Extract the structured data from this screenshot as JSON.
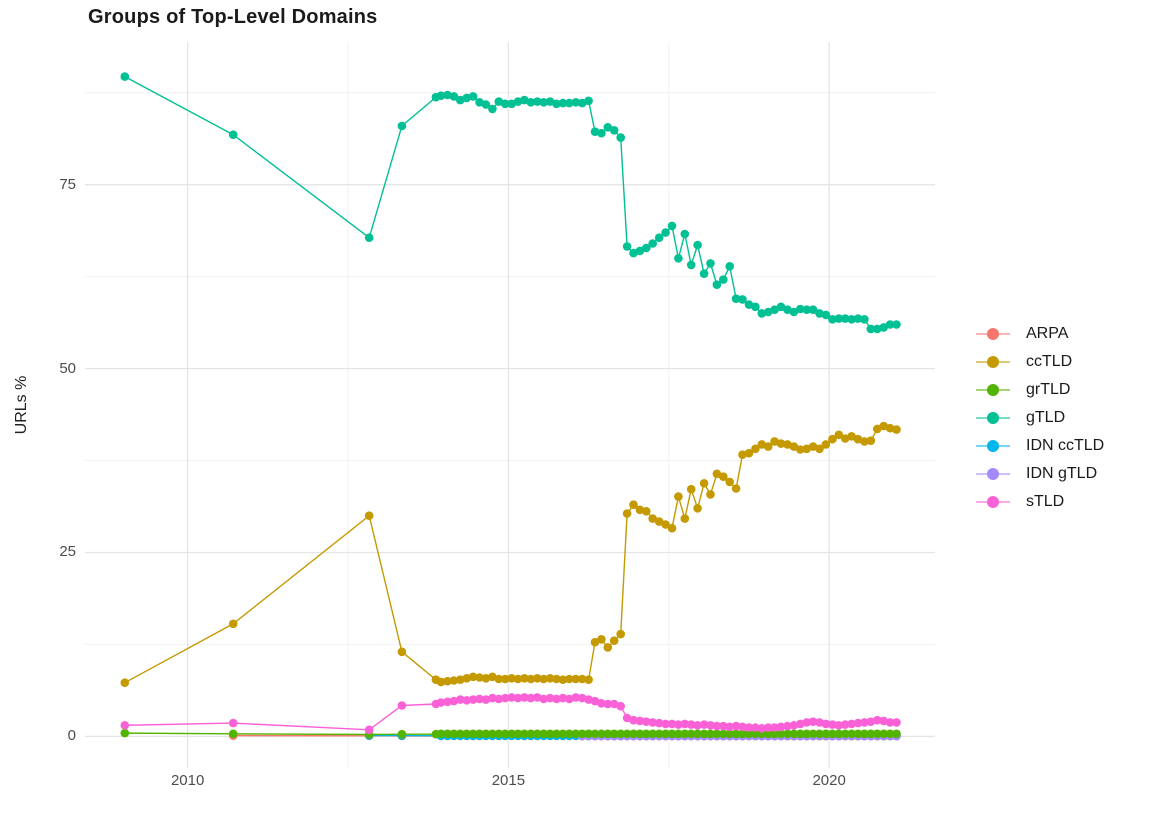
{
  "title": "Groups of Top-Level Domains",
  "axes": {
    "y_label": "URLs %",
    "x_ticks": [
      2010,
      2015,
      2020
    ],
    "x_minor": [
      2012.5,
      2017.5
    ],
    "y_ticks": [
      0,
      25,
      50,
      75
    ],
    "y_minor": [
      12.5,
      37.5,
      62.5,
      87.5
    ],
    "xlim": [
      2008.4,
      2021.65
    ],
    "ylim": [
      -4.3,
      94.4
    ],
    "grid": "on",
    "grid_major_color": "#e5e5e5",
    "grid_minor_color": "#f1f1f1"
  },
  "legend": {
    "position": "right",
    "items": [
      {
        "label": "ARPA",
        "color": "#F8766D"
      },
      {
        "label": "ccTLD",
        "color": "#C49A00"
      },
      {
        "label": "grTLD",
        "color": "#53B400"
      },
      {
        "label": "gTLD",
        "color": "#00C094"
      },
      {
        "label": "IDN ccTLD",
        "color": "#00B6EB"
      },
      {
        "label": "IDN gTLD",
        "color": "#A58AFF"
      },
      {
        "label": "sTLD",
        "color": "#FB61D7"
      }
    ]
  },
  "chart_data": {
    "type": "line",
    "title": "Groups of Top-Level Domains",
    "xlabel": "",
    "ylabel": "URLs %",
    "x_unit": "year",
    "y_unit": "percent",
    "xlim": [
      2008.4,
      2021.65
    ],
    "ylim": [
      -4.3,
      94.4
    ],
    "legend_order": [
      "ARPA",
      "ccTLD",
      "grTLD",
      "gTLD",
      "IDN ccTLD",
      "IDN gTLD",
      "sTLD"
    ],
    "series": [
      {
        "name": "ARPA",
        "color": "#F8766D",
        "points": [
          [
            2010.71,
            0.1
          ],
          [
            2012.83,
            0.08
          ],
          [
            2013.34,
            0.07
          ]
        ],
        "dense": {
          "start": 2013.95,
          "step": 0.1,
          "count": 72,
          "value": 0.05
        }
      },
      {
        "name": "IDN ccTLD",
        "color": "#00B6EB",
        "points": [
          [
            2012.83,
            0.12
          ],
          [
            2013.34,
            0.1
          ]
        ],
        "dense": {
          "start": 2013.95,
          "step": 0.1,
          "count": 72,
          "value": 0.08
        }
      },
      {
        "name": "IDN gTLD",
        "color": "#A58AFF",
        "points": [],
        "dense": {
          "start": 2016.15,
          "step": 0.1,
          "count": 50,
          "value": 0.03
        }
      },
      {
        "name": "grTLD",
        "color": "#53B400",
        "points": [
          [
            2009.02,
            0.45
          ],
          [
            2010.71,
            0.35
          ],
          [
            2012.83,
            0.25
          ],
          [
            2013.34,
            0.3
          ],
          [
            2013.87,
            0.3
          ]
        ],
        "dense": {
          "start": 2013.95,
          "step": 0.1,
          "count": 72,
          "value": 0.35
        }
      },
      {
        "name": "gTLD",
        "color": "#00C094",
        "points": [
          [
            2009.02,
            89.7
          ],
          [
            2010.71,
            81.8
          ],
          [
            2012.83,
            67.8
          ],
          [
            2013.34,
            83
          ],
          [
            2013.87,
            86.9
          ]
        ],
        "dense": {
          "start": 2013.95,
          "step": 0.1,
          "values": [
            87.1,
            87.2,
            87,
            86.5,
            86.8,
            87,
            86.2,
            85.9,
            85.3,
            86.3,
            86,
            86,
            86.3,
            86.5,
            86.2,
            86.3,
            86.2,
            86.3,
            86,
            86.1,
            86.1,
            86.2,
            86.1,
            86.4,
            82.2,
            82,
            82.8,
            82.4,
            81.4,
            66.6,
            65.7,
            66,
            66.4,
            67,
            67.8,
            68.5,
            69.4,
            65,
            68.3,
            64.1,
            66.8,
            62.9,
            64.3,
            61.4,
            62.1,
            63.9,
            59.5,
            59.4,
            58.7,
            58.4,
            57.5,
            57.7,
            58,
            58.4,
            58,
            57.7,
            58.1,
            58,
            58,
            57.5,
            57.3,
            56.7,
            56.8,
            56.8,
            56.7,
            56.8,
            56.7,
            55.4,
            55.4,
            55.6,
            56,
            56
          ]
        }
      },
      {
        "name": "ccTLD",
        "color": "#C49A00",
        "points": [
          [
            2009.02,
            7.3
          ],
          [
            2010.71,
            15.3
          ],
          [
            2012.83,
            30
          ],
          [
            2013.34,
            11.5
          ],
          [
            2013.87,
            7.7
          ]
        ],
        "dense": {
          "start": 2013.95,
          "step": 0.1,
          "values": [
            7.4,
            7.5,
            7.6,
            7.7,
            7.9,
            8.1,
            8,
            7.9,
            8.1,
            7.8,
            7.8,
            7.9,
            7.8,
            7.9,
            7.8,
            7.9,
            7.8,
            7.9,
            7.8,
            7.7,
            7.8,
            7.8,
            7.8,
            7.7,
            12.8,
            13.2,
            12.1,
            13,
            13.9,
            30.3,
            31.5,
            30.8,
            30.6,
            29.6,
            29.2,
            28.8,
            28.3,
            32.6,
            29.6,
            33.6,
            31,
            34.4,
            32.9,
            35.7,
            35.3,
            34.6,
            33.7,
            38.3,
            38.5,
            39.1,
            39.7,
            39.4,
            40.1,
            39.8,
            39.7,
            39.4,
            39,
            39.1,
            39.4,
            39.1,
            39.7,
            40.4,
            41,
            40.5,
            40.8,
            40.4,
            40.1,
            40.2,
            41.8,
            42.2,
            41.9,
            41.7
          ]
        }
      },
      {
        "name": "sTLD",
        "color": "#FB61D7",
        "points": [
          [
            2009.02,
            1.5
          ],
          [
            2010.71,
            1.8
          ],
          [
            2012.83,
            0.9
          ],
          [
            2013.34,
            4.2
          ],
          [
            2013.87,
            4.4
          ]
        ],
        "dense": {
          "start": 2013.95,
          "step": 0.1,
          "values": [
            4.6,
            4.7,
            4.8,
            5,
            4.9,
            5,
            5.1,
            5,
            5.2,
            5.1,
            5.2,
            5.3,
            5.2,
            5.3,
            5.2,
            5.3,
            5.1,
            5.2,
            5.1,
            5.2,
            5.1,
            5.3,
            5.2,
            5,
            4.8,
            4.5,
            4.4,
            4.4,
            4.1,
            2.5,
            2.2,
            2.1,
            2,
            1.9,
            1.8,
            1.7,
            1.7,
            1.6,
            1.7,
            1.6,
            1.5,
            1.6,
            1.5,
            1.4,
            1.4,
            1.3,
            1.4,
            1.3,
            1.2,
            1.2,
            1.1,
            1.2,
            1.2,
            1.3,
            1.4,
            1.5,
            1.7,
            1.9,
            2,
            1.9,
            1.7,
            1.6,
            1.5,
            1.6,
            1.7,
            1.8,
            1.9,
            2,
            2.2,
            2.1,
            1.9,
            1.9
          ]
        }
      }
    ]
  }
}
